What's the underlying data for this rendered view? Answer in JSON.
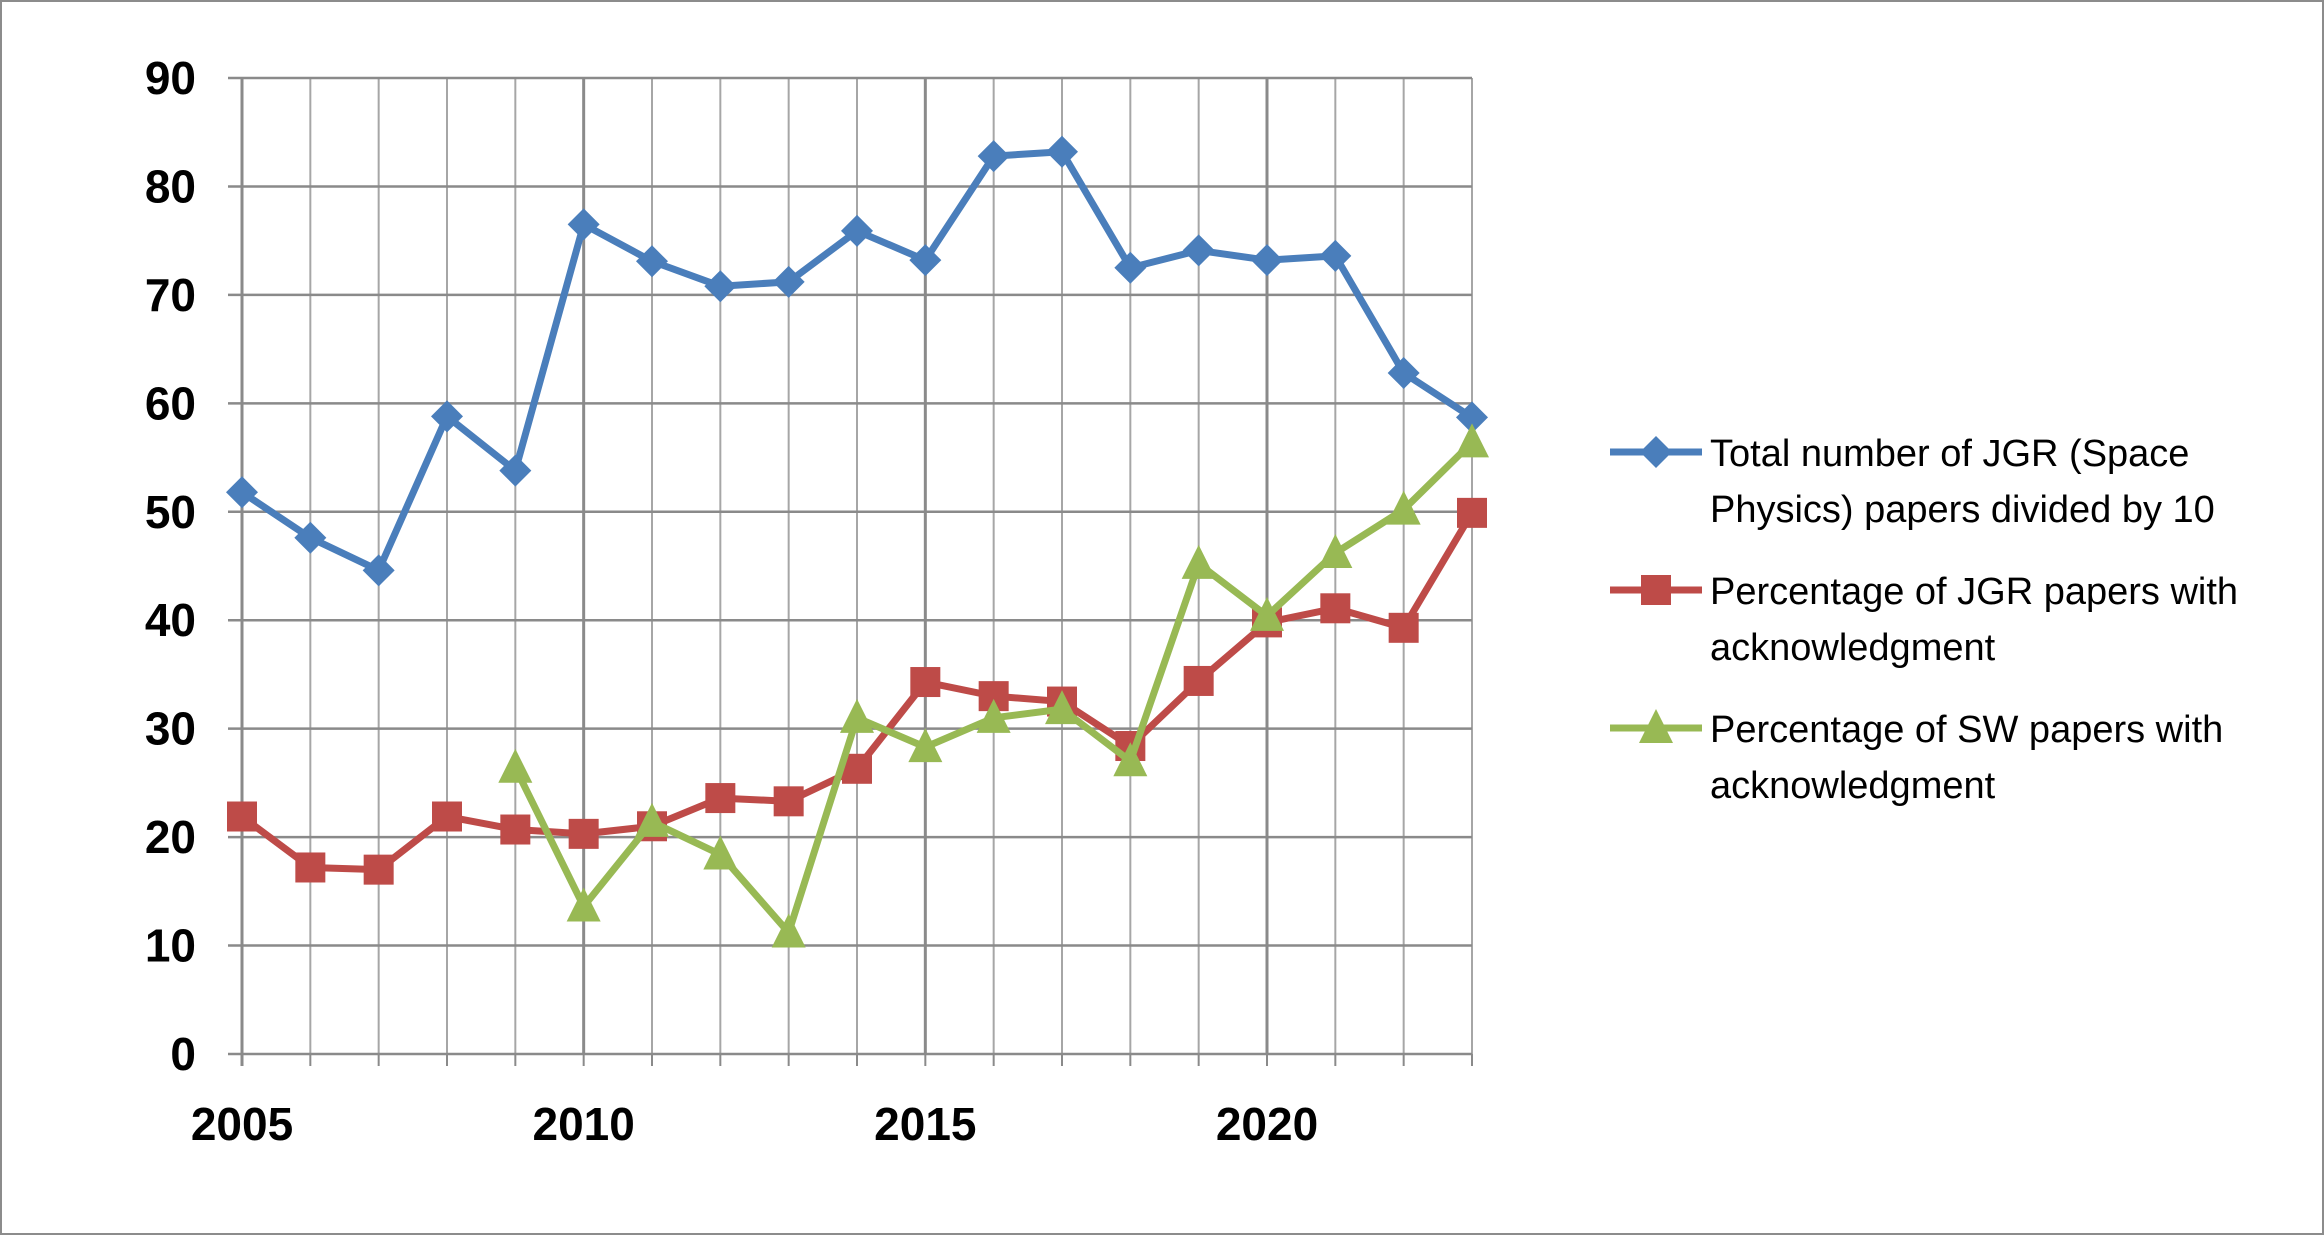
{
  "chart_data": {
    "type": "line",
    "title": "",
    "xlabel": "",
    "ylabel": "",
    "x": [
      2005,
      2006,
      2007,
      2008,
      2009,
      2010,
      2011,
      2012,
      2013,
      2014,
      2015,
      2016,
      2017,
      2018,
      2019,
      2020,
      2021,
      2022,
      2023
    ],
    "xlim": [
      2005,
      2023
    ],
    "ylim": [
      0,
      90
    ],
    "yticks": [
      "0",
      "10",
      "20",
      "30",
      "40",
      "50",
      "60",
      "70",
      "80",
      "90"
    ],
    "xticks": [
      "2005",
      "2010",
      "2015",
      "2020"
    ],
    "grid": true,
    "legend_position": "right",
    "series": [
      {
        "name": "Total number of JGR (Space Physics) papers divided by 10",
        "name_lines": [
          "Total number of JGR (Space",
          "Physics) papers divided by 10"
        ],
        "color": "#4a7ebb",
        "marker": "diamond",
        "values": [
          51.8,
          47.6,
          44.6,
          58.8,
          53.8,
          76.5,
          73.1,
          70.8,
          71.2,
          75.9,
          73.2,
          82.8,
          83.2,
          72.5,
          74.1,
          73.2,
          73.6,
          62.8,
          58.7
        ]
      },
      {
        "name": "Percentage of JGR papers with acknowledgment",
        "name_lines": [
          "Percentage of JGR papers with",
          "acknowledgment"
        ],
        "color": "#be4b48",
        "marker": "square",
        "values": [
          21.9,
          17.2,
          17.0,
          21.9,
          20.7,
          20.3,
          21.0,
          23.6,
          23.3,
          26.3,
          34.3,
          33.0,
          32.5,
          28.4,
          34.4,
          39.8,
          41.1,
          39.3,
          49.9
        ]
      },
      {
        "name": "Percentage of SW papers with acknowledgment",
        "name_lines": [
          "Percentage of SW papers with",
          "acknowledgment"
        ],
        "color": "#98b954",
        "marker": "triangle",
        "values": [
          null,
          null,
          null,
          null,
          26.4,
          13.6,
          21.4,
          18.4,
          11.2,
          31.0,
          28.3,
          31.0,
          31.8,
          27.0,
          45.2,
          40.4,
          46.2,
          50.2,
          56.4
        ]
      }
    ]
  }
}
